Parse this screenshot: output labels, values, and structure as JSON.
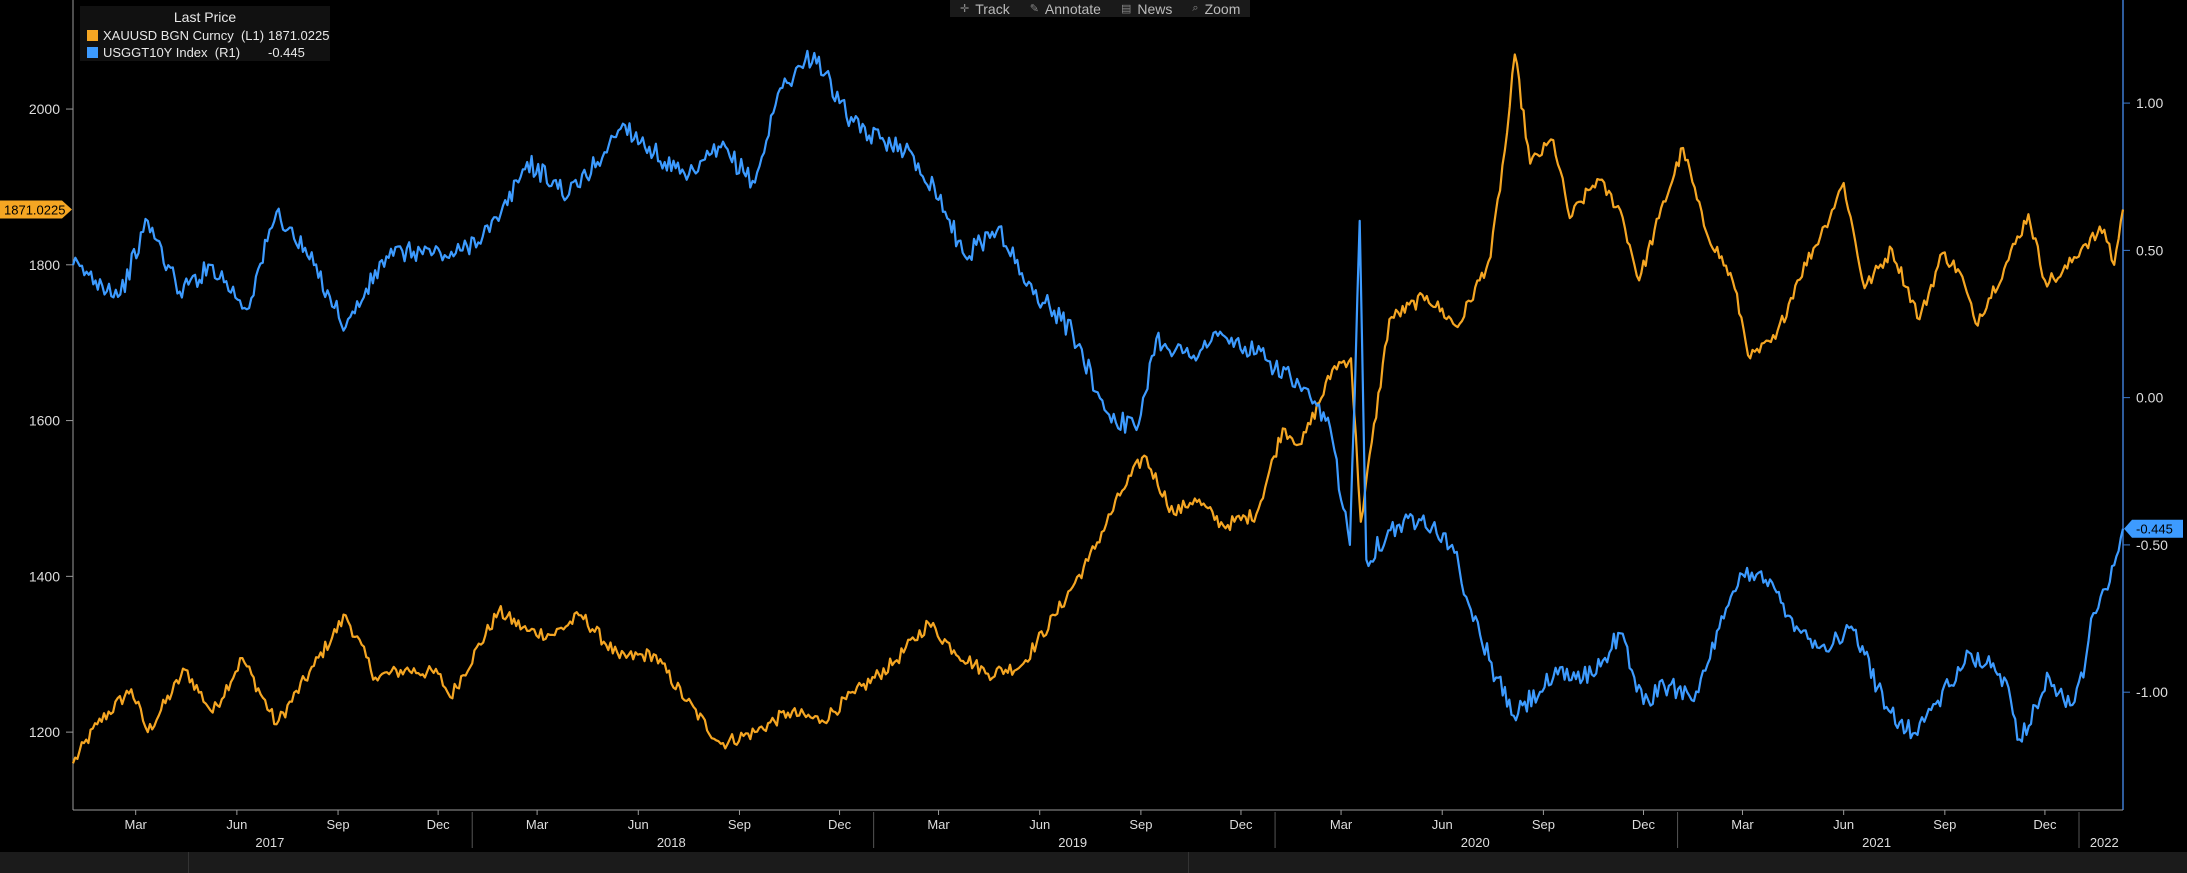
{
  "toolbar": {
    "items": [
      {
        "label": "Track",
        "icon": "crosshair-icon"
      },
      {
        "label": "Annotate",
        "icon": "pencil-icon"
      },
      {
        "label": "News",
        "icon": "news-icon"
      },
      {
        "label": "Zoom",
        "icon": "magnifier-icon"
      }
    ]
  },
  "legend": {
    "title": "Last Price",
    "entries": [
      {
        "name": "XAUUSD BGN Curncy  (L1)",
        "value": "1871.0225",
        "color": "#f5a623"
      },
      {
        "name": "USGGT10Y Index  (R1)",
        "value": "-0.445",
        "color": "#3d9bff"
      }
    ]
  },
  "chart_data": {
    "type": "line",
    "left_axis": {
      "ticks": [
        1200,
        1400,
        1600,
        1800,
        2000
      ],
      "ylim": [
        1100,
        2140
      ],
      "last_value_label": "1871.0225"
    },
    "right_axis": {
      "ticks": [
        "1.00",
        "0.50",
        "0.00",
        "-0.50",
        "-1.00"
      ],
      "tick_values": [
        1.0,
        0.5,
        0.0,
        -0.5,
        -1.0
      ],
      "ylim": [
        -1.4,
        1.35
      ],
      "last_value_label": "-0.445"
    },
    "x_axis": {
      "xlim": [
        "2017-01-03",
        "2022-02-10"
      ],
      "months": [
        {
          "label": "Mar",
          "date": "2017-03-01"
        },
        {
          "label": "Jun",
          "date": "2017-06-01"
        },
        {
          "label": "Sep",
          "date": "2017-09-01"
        },
        {
          "label": "Dec",
          "date": "2017-12-01"
        },
        {
          "label": "Mar",
          "date": "2018-03-01"
        },
        {
          "label": "Jun",
          "date": "2018-06-01"
        },
        {
          "label": "Sep",
          "date": "2018-09-01"
        },
        {
          "label": "Dec",
          "date": "2018-12-01"
        },
        {
          "label": "Mar",
          "date": "2019-03-01"
        },
        {
          "label": "Jun",
          "date": "2019-06-01"
        },
        {
          "label": "Sep",
          "date": "2019-09-01"
        },
        {
          "label": "Dec",
          "date": "2019-12-01"
        },
        {
          "label": "Mar",
          "date": "2020-03-01"
        },
        {
          "label": "Jun",
          "date": "2020-06-01"
        },
        {
          "label": "Sep",
          "date": "2020-09-01"
        },
        {
          "label": "Dec",
          "date": "2020-12-01"
        },
        {
          "label": "Mar",
          "date": "2021-03-01"
        },
        {
          "label": "Jun",
          "date": "2021-06-01"
        },
        {
          "label": "Sep",
          "date": "2021-09-01"
        },
        {
          "label": "Dec",
          "date": "2021-12-01"
        }
      ],
      "years": [
        {
          "label": "2017",
          "date": "2017-07-01"
        },
        {
          "label": "2018",
          "date": "2018-07-01"
        },
        {
          "label": "2019",
          "date": "2019-07-01"
        },
        {
          "label": "2020",
          "date": "2020-07-01"
        },
        {
          "label": "2021",
          "date": "2021-07-01"
        },
        {
          "label": "2022",
          "date": "2022-01-24"
        }
      ],
      "year_separators": [
        "2018-01-01",
        "2019-01-01",
        "2020-01-01",
        "2021-01-01",
        "2022-01-01"
      ]
    },
    "series": [
      {
        "name": "XAUUSD BGN Curncy",
        "axis": "left",
        "color": "#f5a623",
        "points": [
          [
            "2017-01-03",
            1160
          ],
          [
            "2017-01-25",
            1210
          ],
          [
            "2017-02-25",
            1255
          ],
          [
            "2017-03-12",
            1200
          ],
          [
            "2017-04-15",
            1280
          ],
          [
            "2017-05-10",
            1225
          ],
          [
            "2017-06-06",
            1295
          ],
          [
            "2017-07-07",
            1210
          ],
          [
            "2017-08-10",
            1285
          ],
          [
            "2017-09-08",
            1350
          ],
          [
            "2017-10-05",
            1270
          ],
          [
            "2017-11-01",
            1280
          ],
          [
            "2017-12-01",
            1275
          ],
          [
            "2017-12-12",
            1245
          ],
          [
            "2018-01-25",
            1355
          ],
          [
            "2018-02-20",
            1330
          ],
          [
            "2018-03-15",
            1325
          ],
          [
            "2018-04-10",
            1350
          ],
          [
            "2018-05-15",
            1295
          ],
          [
            "2018-06-15",
            1300
          ],
          [
            "2018-07-15",
            1240
          ],
          [
            "2018-08-15",
            1185
          ],
          [
            "2018-09-15",
            1200
          ],
          [
            "2018-10-15",
            1225
          ],
          [
            "2018-11-15",
            1215
          ],
          [
            "2018-12-15",
            1250
          ],
          [
            "2019-01-20",
            1290
          ],
          [
            "2019-02-20",
            1340
          ],
          [
            "2019-03-15",
            1305
          ],
          [
            "2019-04-15",
            1275
          ],
          [
            "2019-05-15",
            1285
          ],
          [
            "2019-06-15",
            1350
          ],
          [
            "2019-07-15",
            1420
          ],
          [
            "2019-08-15",
            1510
          ],
          [
            "2019-09-04",
            1555
          ],
          [
            "2019-10-01",
            1480
          ],
          [
            "2019-10-20",
            1500
          ],
          [
            "2019-11-15",
            1465
          ],
          [
            "2019-12-15",
            1480
          ],
          [
            "2020-01-08",
            1590
          ],
          [
            "2020-01-25",
            1570
          ],
          [
            "2020-02-24",
            1670
          ],
          [
            "2020-03-10",
            1680
          ],
          [
            "2020-03-19",
            1470
          ],
          [
            "2020-04-14",
            1730
          ],
          [
            "2020-05-18",
            1760
          ],
          [
            "2020-06-15",
            1720
          ],
          [
            "2020-07-15",
            1810
          ],
          [
            "2020-07-30",
            1970
          ],
          [
            "2020-08-06",
            2070
          ],
          [
            "2020-08-20",
            1930
          ],
          [
            "2020-09-10",
            1960
          ],
          [
            "2020-09-25",
            1860
          ],
          [
            "2020-10-20",
            1910
          ],
          [
            "2020-11-10",
            1870
          ],
          [
            "2020-11-27",
            1780
          ],
          [
            "2020-12-15",
            1860
          ],
          [
            "2021-01-06",
            1950
          ],
          [
            "2021-01-25",
            1850
          ],
          [
            "2021-02-20",
            1780
          ],
          [
            "2021-03-08",
            1680
          ],
          [
            "2021-03-31",
            1705
          ],
          [
            "2021-04-20",
            1780
          ],
          [
            "2021-05-15",
            1850
          ],
          [
            "2021-06-01",
            1905
          ],
          [
            "2021-06-20",
            1770
          ],
          [
            "2021-07-15",
            1820
          ],
          [
            "2021-08-09",
            1730
          ],
          [
            "2021-08-30",
            1815
          ],
          [
            "2021-09-15",
            1790
          ],
          [
            "2021-09-29",
            1725
          ],
          [
            "2021-10-25",
            1795
          ],
          [
            "2021-11-16",
            1865
          ],
          [
            "2021-12-01",
            1780
          ],
          [
            "2021-12-15",
            1785
          ],
          [
            "2022-01-05",
            1825
          ],
          [
            "2022-01-24",
            1845
          ],
          [
            "2022-02-02",
            1800
          ],
          [
            "2022-02-10",
            1871.02
          ]
        ]
      },
      {
        "name": "USGGT10Y Index",
        "axis": "right",
        "color": "#3d9bff",
        "points": [
          [
            "2017-01-03",
            0.45
          ],
          [
            "2017-02-15",
            0.35
          ],
          [
            "2017-03-12",
            0.6
          ],
          [
            "2017-04-10",
            0.36
          ],
          [
            "2017-05-10",
            0.45
          ],
          [
            "2017-06-10",
            0.3
          ],
          [
            "2017-07-07",
            0.63
          ],
          [
            "2017-08-10",
            0.45
          ],
          [
            "2017-09-08",
            0.24
          ],
          [
            "2017-10-15",
            0.48
          ],
          [
            "2017-11-15",
            0.5
          ],
          [
            "2017-12-15",
            0.48
          ],
          [
            "2018-01-25",
            0.6
          ],
          [
            "2018-02-20",
            0.8
          ],
          [
            "2018-03-30",
            0.69
          ],
          [
            "2018-04-25",
            0.8
          ],
          [
            "2018-05-18",
            0.93
          ],
          [
            "2018-06-25",
            0.8
          ],
          [
            "2018-07-15",
            0.74
          ],
          [
            "2018-08-15",
            0.85
          ],
          [
            "2018-09-15",
            0.73
          ],
          [
            "2018-10-08",
            1.05
          ],
          [
            "2018-11-08",
            1.17
          ],
          [
            "2018-12-01",
            1.0
          ],
          [
            "2018-12-20",
            0.9
          ],
          [
            "2019-01-25",
            0.86
          ],
          [
            "2019-02-25",
            0.72
          ],
          [
            "2019-03-25",
            0.48
          ],
          [
            "2019-04-25",
            0.58
          ],
          [
            "2019-05-20",
            0.38
          ],
          [
            "2019-06-10",
            0.31
          ],
          [
            "2019-07-01",
            0.22
          ],
          [
            "2019-08-01",
            -0.05
          ],
          [
            "2019-08-28",
            -0.11
          ],
          [
            "2019-09-15",
            0.2
          ],
          [
            "2019-10-15",
            0.14
          ],
          [
            "2019-11-10",
            0.21
          ],
          [
            "2019-12-15",
            0.15
          ],
          [
            "2020-01-15",
            0.07
          ],
          [
            "2020-02-20",
            -0.1
          ],
          [
            "2020-03-09",
            -0.5
          ],
          [
            "2020-03-18",
            0.6
          ],
          [
            "2020-03-24",
            -0.55
          ],
          [
            "2020-04-15",
            -0.45
          ],
          [
            "2020-05-15",
            -0.4
          ],
          [
            "2020-06-10",
            -0.5
          ],
          [
            "2020-06-25",
            -0.7
          ],
          [
            "2020-07-20",
            -0.95
          ],
          [
            "2020-08-05",
            -1.08
          ],
          [
            "2020-09-10",
            -0.95
          ],
          [
            "2020-10-15",
            -0.94
          ],
          [
            "2020-11-10",
            -0.8
          ],
          [
            "2020-12-01",
            -1.04
          ],
          [
            "2020-12-20",
            -0.98
          ],
          [
            "2021-01-20",
            -1.0
          ],
          [
            "2021-02-12",
            -0.75
          ],
          [
            "2021-03-01",
            -0.6
          ],
          [
            "2021-03-18",
            -0.59
          ],
          [
            "2021-04-15",
            -0.75
          ],
          [
            "2021-05-10",
            -0.85
          ],
          [
            "2021-06-10",
            -0.79
          ],
          [
            "2021-07-10",
            -1.05
          ],
          [
            "2021-08-03",
            -1.14
          ],
          [
            "2021-09-05",
            -0.98
          ],
          [
            "2021-09-25",
            -0.87
          ],
          [
            "2021-10-25",
            -0.95
          ],
          [
            "2021-11-08",
            -1.16
          ],
          [
            "2021-12-05",
            -0.95
          ],
          [
            "2021-12-20",
            -1.05
          ],
          [
            "2022-01-05",
            -0.95
          ],
          [
            "2022-01-12",
            -0.75
          ],
          [
            "2022-01-25",
            -0.65
          ],
          [
            "2022-02-10",
            -0.445
          ]
        ]
      }
    ]
  }
}
